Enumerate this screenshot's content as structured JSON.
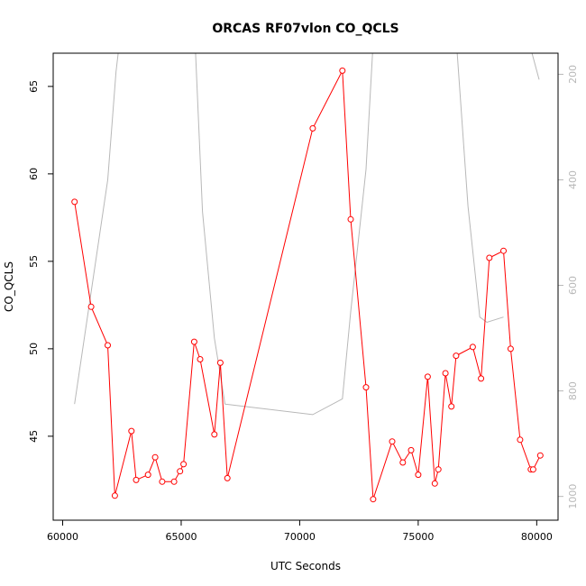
{
  "chart_data": {
    "type": "line",
    "title": "ORCAS RF07vlon CO_QCLS",
    "xlabel": "UTC Seconds",
    "ylabel": "CO_QCLS",
    "xlim": [
      59600,
      80900
    ],
    "ylim": [
      40.2,
      66.9
    ],
    "x_ticks": [
      60000,
      65000,
      70000,
      75000,
      80000
    ],
    "y_ticks": [
      45,
      50,
      55,
      60,
      65
    ],
    "right_axis": {
      "ylim": [
        1045,
        160
      ],
      "ticks": [
        200,
        400,
        600,
        800,
        1000
      ],
      "color": "#b8b8b8"
    },
    "series": [
      {
        "color": "#ff0000",
        "marker": "circle",
        "x": [
          60500,
          61200,
          61900,
          62200,
          62900,
          63100,
          63600,
          63900,
          64200,
          64700,
          64950,
          65100,
          65550,
          65800,
          66400,
          66650,
          66950,
          70550,
          71800,
          72150,
          72800,
          73100,
          73900,
          74350,
          74700,
          75000,
          75400,
          75700,
          75850,
          76150,
          76400,
          76600,
          77300,
          77650,
          78000,
          78600,
          78900,
          79300,
          79750,
          79850,
          80150
        ],
        "y": [
          58.4,
          52.4,
          50.2,
          41.6,
          45.3,
          42.5,
          42.8,
          43.8,
          42.4,
          42.4,
          43.0,
          43.4,
          50.4,
          49.4,
          45.1,
          49.2,
          42.6,
          62.6,
          65.9,
          57.4,
          47.8,
          41.4,
          44.7,
          43.5,
          44.2,
          42.8,
          48.4,
          42.3,
          43.1,
          48.6,
          46.7,
          49.6,
          50.1,
          48.3,
          55.2,
          55.6,
          50.0,
          44.8,
          43.1,
          43.1,
          43.9
        ]
      },
      {
        "color": "#b8b8b8",
        "axis": "right",
        "x": [
          60500,
          61900,
          62250,
          62500,
          65550,
          65900,
          66400,
          66850,
          70550,
          71800,
          72150,
          72800,
          73100,
          73800,
          79300,
          79500,
          80100
        ],
        "y": [
          825,
          400,
          195,
          100,
          100,
          460,
          700,
          825,
          845,
          815,
          650,
          380,
          140,
          130,
          130,
          110,
          210
        ]
      },
      {
        "color": "#b8b8b8",
        "axis": "right",
        "x": [
          78600,
          77900,
          77600,
          77100,
          76600
        ],
        "y": [
          660,
          670,
          660,
          450,
          130
        ]
      }
    ]
  }
}
